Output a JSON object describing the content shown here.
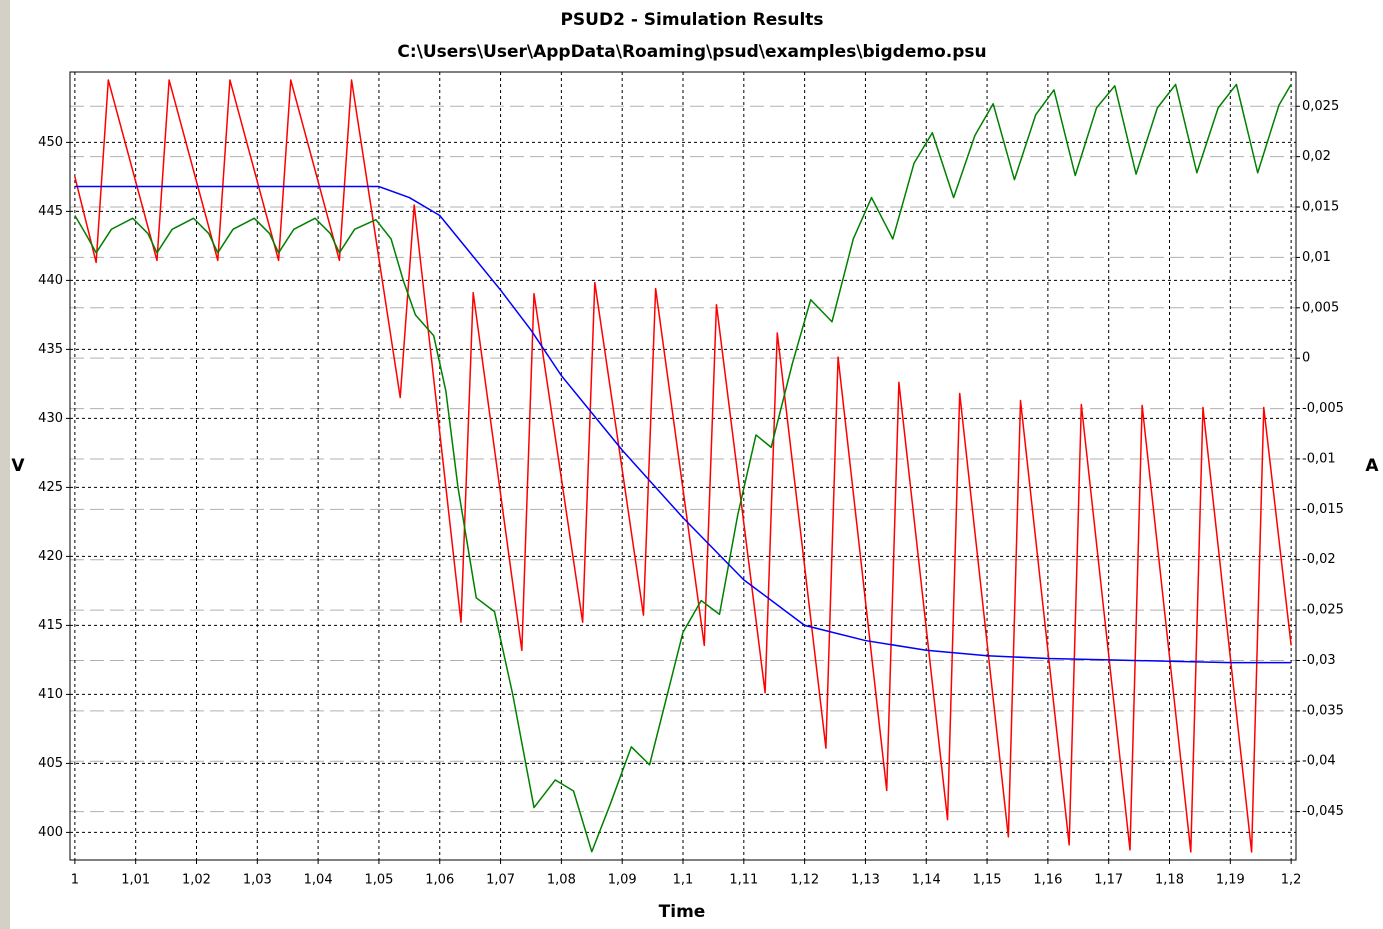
{
  "chart_data": {
    "type": "line",
    "title": "PSUD2 - Simulation Results",
    "subtitle": "C:\\Users\\User\\AppData\\Roaming\\psud\\examples\\bigdemo.psu",
    "x_label": "Time",
    "y_label": "V",
    "y2_label": "A",
    "xlim": [
      0.9992,
      1.2008
    ],
    "ylim": [
      398.0,
      455.1
    ],
    "y2lim": [
      -0.0498,
      0.0284
    ],
    "xticks": [
      1,
      {
        "value": 1.01,
        "label": "1,01"
      },
      {
        "value": 1.02,
        "label": "1,02"
      },
      {
        "value": 1.03,
        "label": "1,03"
      },
      {
        "value": 1.04,
        "label": "1,04"
      },
      {
        "value": 1.05,
        "label": "1,05"
      },
      {
        "value": 1.06,
        "label": "1,06"
      },
      {
        "value": 1.07,
        "label": "1,07"
      },
      {
        "value": 1.08,
        "label": "1,08"
      },
      {
        "value": 1.09,
        "label": "1,09"
      },
      {
        "value": 1.1,
        "label": "1,1"
      },
      {
        "value": 1.11,
        "label": "1,11"
      },
      {
        "value": 1.12,
        "label": "1,12"
      },
      {
        "value": 1.13,
        "label": "1,13"
      },
      {
        "value": 1.14,
        "label": "1,14"
      },
      {
        "value": 1.15,
        "label": "1,15"
      },
      {
        "value": 1.16,
        "label": "1,16"
      },
      {
        "value": 1.17,
        "label": "1,17"
      },
      {
        "value": 1.18,
        "label": "1,18"
      },
      {
        "value": 1.19,
        "label": "1,19"
      },
      {
        "value": 1.2,
        "label": "1,2"
      }
    ],
    "yticks": [
      400,
      405,
      410,
      415,
      420,
      425,
      430,
      435,
      440,
      445,
      450
    ],
    "y2ticks": [
      {
        "value": 0.025,
        "label": "0,025"
      },
      {
        "value": 0.02,
        "label": "0,02"
      },
      {
        "value": 0.015,
        "label": "0,015"
      },
      {
        "value": 0.01,
        "label": "0,01"
      },
      {
        "value": 0.005,
        "label": "0,005"
      },
      0,
      {
        "value": -0.005,
        "label": "-0,005"
      },
      {
        "value": -0.01,
        "label": "-0,01"
      },
      {
        "value": -0.015,
        "label": "-0,015"
      },
      {
        "value": -0.02,
        "label": "-0,02"
      },
      {
        "value": -0.025,
        "label": "-0,025"
      },
      {
        "value": -0.03,
        "label": "-0,03"
      },
      {
        "value": -0.035,
        "label": "-0,035"
      },
      {
        "value": -0.04,
        "label": "-0,04"
      },
      {
        "value": -0.045,
        "label": "-0,045"
      }
    ],
    "grid": true,
    "series": [
      {
        "color": "#ff0000",
        "axis": "y2",
        "x": [
          1.0,
          1.0035,
          1.0055,
          1.0135,
          1.0155,
          1.0235,
          1.0255,
          1.0335,
          1.0355,
          1.0435,
          1.0455,
          1.0535,
          1.0558,
          1.0635,
          1.0655,
          1.0735,
          1.0755,
          1.0835,
          1.0855,
          1.0935,
          1.0955,
          1.1035,
          1.1055,
          1.1135,
          1.1155,
          1.1235,
          1.1255,
          1.1335,
          1.1355,
          1.1435,
          1.1455,
          1.1535,
          1.1555,
          1.1635,
          1.1655,
          1.1735,
          1.1755,
          1.1835,
          1.1855,
          1.1935,
          1.1955,
          1.2
        ],
        "values": [
          0.018,
          0.0095,
          0.0276,
          0.0097,
          0.0276,
          0.0097,
          0.0276,
          0.0097,
          0.0276,
          0.0097,
          0.0276,
          -0.0039,
          0.0152,
          -0.0262,
          0.0065,
          -0.029,
          0.0064,
          -0.0262,
          0.0075,
          -0.0255,
          0.0069,
          -0.0285,
          0.0053,
          -0.0332,
          0.0025,
          -0.0387,
          0.0001,
          -0.0429,
          -0.0024,
          -0.0458,
          -0.0035,
          -0.0475,
          -0.0042,
          -0.0483,
          -0.0046,
          -0.0488,
          -0.0047,
          -0.049,
          -0.0049,
          -0.049,
          -0.0049,
          -0.0285
        ]
      },
      {
        "color": "#008000",
        "axis": "y",
        "x": [
          1.0,
          1.002,
          1.0035,
          1.006,
          1.0095,
          1.012,
          1.0135,
          1.016,
          1.0195,
          1.022,
          1.0235,
          1.026,
          1.0295,
          1.032,
          1.0335,
          1.036,
          1.0395,
          1.042,
          1.0435,
          1.046,
          1.0495,
          1.052,
          1.054,
          1.056,
          1.059,
          1.061,
          1.063,
          1.066,
          1.069,
          1.072,
          1.0755,
          1.079,
          1.082,
          1.085,
          1.088,
          1.0915,
          1.0945,
          1.098,
          1.1,
          1.103,
          1.106,
          1.109,
          1.112,
          1.1145,
          1.118,
          1.121,
          1.1245,
          1.128,
          1.131,
          1.1345,
          1.138,
          1.141,
          1.1445,
          1.148,
          1.151,
          1.1545,
          1.158,
          1.161,
          1.1645,
          1.168,
          1.171,
          1.1745,
          1.178,
          1.181,
          1.1845,
          1.188,
          1.191,
          1.1945,
          1.198,
          1.2
        ],
        "values": [
          444.7,
          443.2,
          442.0,
          443.7,
          444.5,
          443.4,
          442.0,
          443.7,
          444.5,
          443.4,
          442.0,
          443.7,
          444.5,
          443.4,
          442.0,
          443.7,
          444.5,
          443.4,
          442.0,
          443.7,
          444.4,
          443,
          440,
          437.5,
          436,
          432,
          425,
          417,
          416,
          410,
          401.8,
          403.8,
          403,
          398.6,
          402,
          406.2,
          404.9,
          411,
          414.5,
          416.8,
          415.8,
          423,
          428.8,
          427.9,
          434,
          438.6,
          437,
          443,
          446,
          443,
          448.5,
          450.7,
          446,
          450.5,
          452.8,
          447.3,
          452,
          453.8,
          447.6,
          452.5,
          454.1,
          447.7,
          452.5,
          454.2,
          447.8,
          452.5,
          454.2,
          447.8,
          452.7,
          454.2
        ]
      },
      {
        "color": "#0000ff",
        "axis": "y",
        "x": [
          1.0,
          1.05,
          1.055,
          1.06,
          1.065,
          1.07,
          1.075,
          1.08,
          1.09,
          1.1,
          1.11,
          1.12,
          1.13,
          1.14,
          1.15,
          1.16,
          1.17,
          1.18,
          1.19,
          1.2
        ],
        "values": [
          446.8,
          446.8,
          446.0,
          444.7,
          442.0,
          439.3,
          436.4,
          433.1,
          427.7,
          422.8,
          418.3,
          415.0,
          413.9,
          413.2,
          412.8,
          412.6,
          412.5,
          412.4,
          412.3,
          412.3
        ]
      }
    ]
  }
}
